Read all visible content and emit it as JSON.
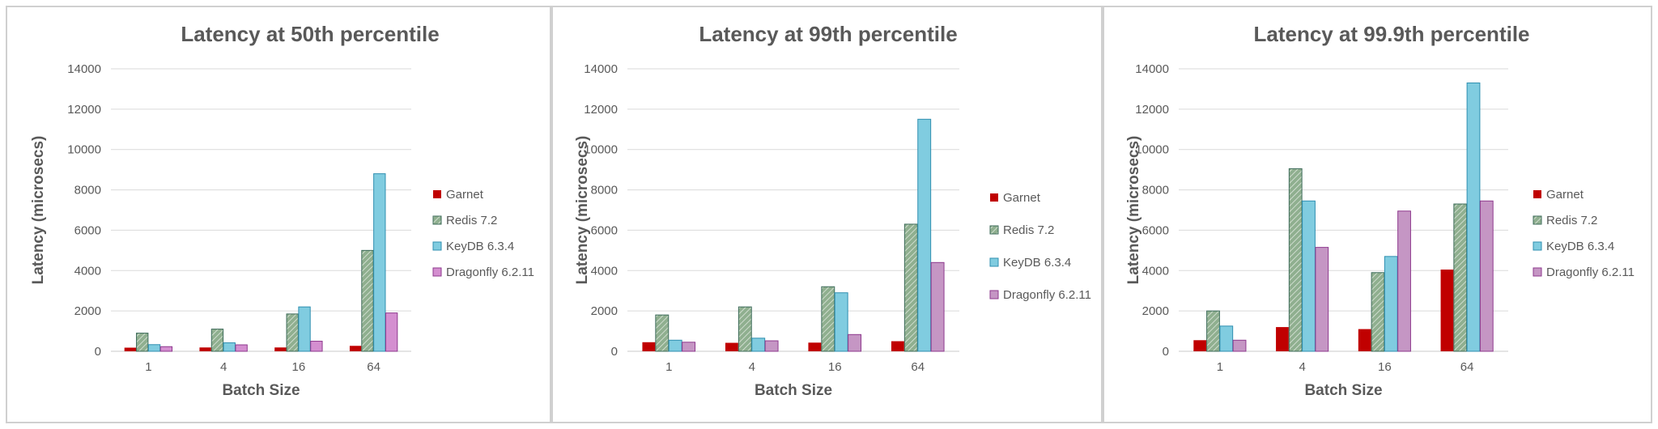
{
  "chart_data": [
    {
      "type": "bar",
      "title": "Latency at 50th percentile",
      "xlabel": "Batch Size",
      "ylabel": "Latency (microsecs)",
      "ylim": [
        0,
        14000
      ],
      "yticks": [
        0,
        2000,
        4000,
        6000,
        8000,
        10000,
        12000,
        14000
      ],
      "grid": true,
      "legend_position": "right",
      "categories": [
        "1",
        "4",
        "16",
        "64"
      ],
      "series": [
        {
          "name": "Garnet",
          "color": "#c00000",
          "pattern": "solid",
          "values": [
            180,
            190,
            190,
            270
          ]
        },
        {
          "name": "Redis 7.2",
          "color": "#8faf8f",
          "pattern": "hatched",
          "values": [
            900,
            1100,
            1850,
            5000
          ]
        },
        {
          "name": "KeyDB 6.3.4",
          "color": "#80cce0",
          "pattern": "solid",
          "values": [
            330,
            420,
            2200,
            8800
          ]
        },
        {
          "name": "Dragonfly 6.2.11",
          "color": "#d48fd0",
          "pattern": "solid",
          "values": [
            230,
            320,
            500,
            1900
          ]
        }
      ]
    },
    {
      "type": "bar",
      "title": "Latency at 99th percentile",
      "xlabel": "Batch Size",
      "ylabel": "Latency (microsecs)",
      "ylim": [
        0,
        14000
      ],
      "yticks": [
        0,
        2000,
        4000,
        6000,
        8000,
        10000,
        12000,
        14000
      ],
      "grid": true,
      "legend_position": "right",
      "categories": [
        "1",
        "4",
        "16",
        "64"
      ],
      "series": [
        {
          "name": "Garnet",
          "color": "#c00000",
          "pattern": "solid",
          "values": [
            450,
            420,
            430,
            500
          ]
        },
        {
          "name": "Redis 7.2",
          "color": "#8faf8f",
          "pattern": "hatched",
          "values": [
            1800,
            2200,
            3200,
            6300
          ]
        },
        {
          "name": "KeyDB 6.3.4",
          "color": "#80cce0",
          "pattern": "solid",
          "values": [
            550,
            650,
            2900,
            11500
          ]
        },
        {
          "name": "Dragonfly 6.2.11",
          "color": "#c596c4",
          "pattern": "solid",
          "values": [
            450,
            520,
            830,
            4400
          ]
        }
      ]
    },
    {
      "type": "bar",
      "title": "Latency at 99.9th percentile",
      "xlabel": "Batch Size",
      "ylabel": "Latency (microsecs)",
      "ylim": [
        0,
        14000
      ],
      "yticks": [
        0,
        2000,
        4000,
        6000,
        8000,
        10000,
        12000,
        14000
      ],
      "grid": true,
      "legend_position": "right",
      "categories": [
        "1",
        "4",
        "16",
        "64"
      ],
      "series": [
        {
          "name": "Garnet",
          "color": "#c00000",
          "pattern": "solid",
          "values": [
            550,
            1200,
            1100,
            4050
          ]
        },
        {
          "name": "Redis 7.2",
          "color": "#8faf8f",
          "pattern": "hatched",
          "values": [
            2000,
            9050,
            3900,
            7300
          ]
        },
        {
          "name": "KeyDB 6.3.4",
          "color": "#80cce0",
          "pattern": "solid",
          "values": [
            1250,
            7450,
            4700,
            13300
          ]
        },
        {
          "name": "Dragonfly 6.2.11",
          "color": "#c596c4",
          "pattern": "solid",
          "values": [
            550,
            5150,
            6950,
            7450
          ]
        }
      ]
    }
  ]
}
